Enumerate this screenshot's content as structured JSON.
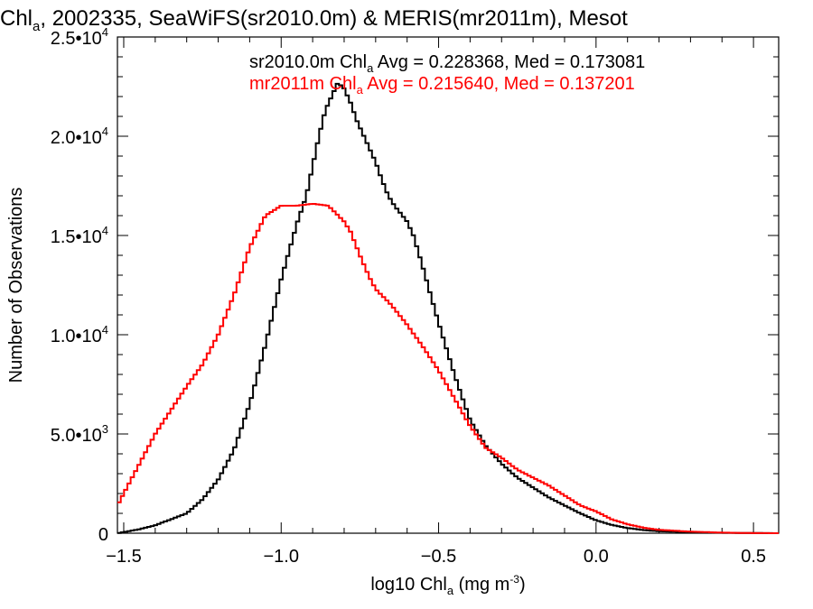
{
  "chart_data": {
    "type": "line",
    "title": "Chl",
    "title_sub": "a",
    "title_rest": ", 2002335, SeaWiFS(sr2010.0m) & MERIS(mr2011m), Mesot",
    "xlabel": "log10 Chl",
    "xlabel_sub": "a",
    "xlabel_rest": " (mg m",
    "xlabel_sup": "-3",
    "xlabel_end": ")",
    "ylabel": "Number of Observations",
    "xlim": [
      -1.52,
      0.58
    ],
    "ylim": [
      0,
      25000
    ],
    "xticks": [
      {
        "value": -1.5,
        "label": "−1.5"
      },
      {
        "value": -1.0,
        "label": "−1.0"
      },
      {
        "value": -0.5,
        "label": "−0.5"
      },
      {
        "value": 0.0,
        "label": "0.0"
      },
      {
        "value": 0.5,
        "label": "0.5"
      }
    ],
    "yticks": [
      {
        "value": 0,
        "mant": "0",
        "exp": ""
      },
      {
        "value": 5000,
        "mant": "5.0•10",
        "exp": "3"
      },
      {
        "value": 10000,
        "mant": "1.0•10",
        "exp": "4"
      },
      {
        "value": 15000,
        "mant": "1.5•10",
        "exp": "4"
      },
      {
        "value": 20000,
        "mant": "2.0•10",
        "exp": "4"
      },
      {
        "value": 25000,
        "mant": "2.5•10",
        "exp": "4"
      }
    ],
    "legend": [
      {
        "pre": "sr2010.0m Chl",
        "sub": "a",
        "post": " Avg = 0.228368, Med = 0.173081",
        "color": "#000000"
      },
      {
        "pre": "mr2011m Chl",
        "sub": "a",
        "post": " Avg = 0.215640, Med = 0.137201",
        "color": "#ff0000"
      }
    ],
    "series": [
      {
        "color": "#000000",
        "x": [
          -1.52,
          -1.45,
          -1.4,
          -1.35,
          -1.3,
          -1.25,
          -1.2,
          -1.15,
          -1.1,
          -1.05,
          -1.0,
          -0.95,
          -0.92,
          -0.9,
          -0.88,
          -0.86,
          -0.84,
          -0.82,
          -0.8,
          -0.78,
          -0.76,
          -0.74,
          -0.72,
          -0.7,
          -0.68,
          -0.66,
          -0.64,
          -0.62,
          -0.6,
          -0.58,
          -0.55,
          -0.52,
          -0.5,
          -0.45,
          -0.4,
          -0.35,
          -0.3,
          -0.25,
          -0.2,
          -0.15,
          -0.1,
          -0.05,
          0.0,
          0.05,
          0.1,
          0.15,
          0.2,
          0.3,
          0.4,
          0.5,
          0.58
        ],
        "y": [
          0,
          200,
          400,
          700,
          1000,
          1700,
          2700,
          4200,
          6500,
          9500,
          12800,
          15600,
          17000,
          18500,
          20000,
          21300,
          22000,
          22700,
          22400,
          21700,
          20800,
          20100,
          19400,
          18700,
          17800,
          17000,
          16500,
          16100,
          15700,
          15000,
          13400,
          11700,
          10600,
          8000,
          5700,
          4400,
          3500,
          2800,
          2300,
          1800,
          1400,
          1000,
          650,
          420,
          260,
          160,
          100,
          50,
          20,
          10,
          0
        ]
      },
      {
        "color": "#ff0000",
        "x": [
          -1.52,
          -1.5,
          -1.45,
          -1.4,
          -1.35,
          -1.3,
          -1.25,
          -1.2,
          -1.15,
          -1.1,
          -1.05,
          -1.0,
          -0.95,
          -0.9,
          -0.85,
          -0.8,
          -0.78,
          -0.75,
          -0.72,
          -0.7,
          -0.65,
          -0.6,
          -0.55,
          -0.5,
          -0.45,
          -0.4,
          -0.35,
          -0.3,
          -0.25,
          -0.2,
          -0.15,
          -0.1,
          -0.05,
          0.0,
          0.05,
          0.1,
          0.15,
          0.2,
          0.3,
          0.4,
          0.5,
          0.58
        ],
        "y": [
          1400,
          2000,
          3500,
          5000,
          6200,
          7400,
          8500,
          10000,
          12000,
          14400,
          16000,
          16500,
          16500,
          16600,
          16500,
          15700,
          15200,
          14000,
          12900,
          12300,
          11500,
          10500,
          9400,
          8200,
          6800,
          5400,
          4300,
          3800,
          3200,
          2800,
          2400,
          1900,
          1400,
          1100,
          700,
          450,
          280,
          170,
          80,
          30,
          5,
          0
        ]
      }
    ]
  }
}
